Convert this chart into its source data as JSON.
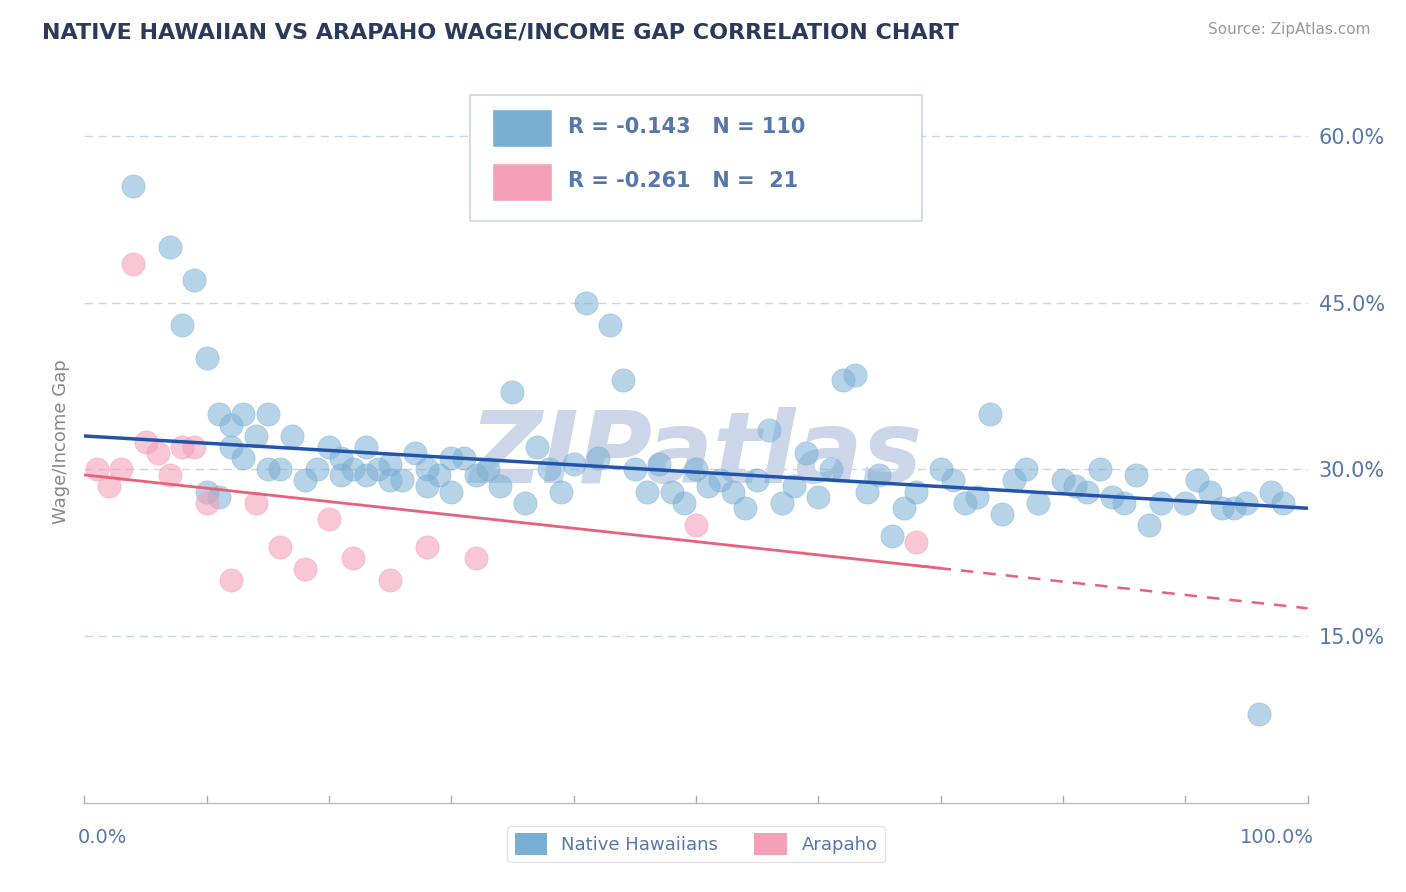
{
  "title": "NATIVE HAWAIIAN VS ARAPAHO WAGE/INCOME GAP CORRELATION CHART",
  "source_text": "Source: ZipAtlas.com",
  "ylabel": "Wage/Income Gap",
  "ytick_positions": [
    0.15,
    0.3,
    0.45,
    0.6
  ],
  "ytick_labels": [
    "15.0%",
    "30.0%",
    "45.0%",
    "60.0%"
  ],
  "xlim": [
    0.0,
    1.0
  ],
  "ylim": [
    0.0,
    0.65
  ],
  "watermark": "ZIPatlas",
  "watermark_color": "#ccd6e8",
  "blue_color": "#7aafd4",
  "pink_color": "#f4a0b8",
  "blue_line_color": "#2255aa",
  "pink_line_color": "#e8607a",
  "title_color": "#2a3a5a",
  "axis_label_color": "#5577aa",
  "grid_color": "#c8d4e8",
  "background_color": "#ffffff",
  "legend_box_color": "#e8eef8",
  "blue_scatter_x": [
    0.04,
    0.07,
    0.08,
    0.09,
    0.1,
    0.11,
    0.12,
    0.13,
    0.14,
    0.15,
    0.15,
    0.16,
    0.17,
    0.18,
    0.19,
    0.2,
    0.21,
    0.21,
    0.22,
    0.23,
    0.23,
    0.24,
    0.25,
    0.25,
    0.26,
    0.27,
    0.28,
    0.28,
    0.29,
    0.3,
    0.3,
    0.31,
    0.32,
    0.33,
    0.34,
    0.35,
    0.36,
    0.37,
    0.38,
    0.39,
    0.4,
    0.41,
    0.42,
    0.43,
    0.44,
    0.45,
    0.46,
    0.47,
    0.48,
    0.49,
    0.5,
    0.51,
    0.52,
    0.53,
    0.54,
    0.55,
    0.56,
    0.57,
    0.58,
    0.59,
    0.6,
    0.61,
    0.62,
    0.63,
    0.64,
    0.65,
    0.66,
    0.67,
    0.68,
    0.7,
    0.71,
    0.72,
    0.73,
    0.74,
    0.75,
    0.76,
    0.77,
    0.78,
    0.8,
    0.81,
    0.82,
    0.83,
    0.84,
    0.85,
    0.86,
    0.87,
    0.88,
    0.9,
    0.91,
    0.92,
    0.93,
    0.94,
    0.95,
    0.96,
    0.97,
    0.98,
    0.1,
    0.11,
    0.12,
    0.13
  ],
  "blue_scatter_y": [
    0.555,
    0.5,
    0.43,
    0.47,
    0.4,
    0.35,
    0.34,
    0.31,
    0.33,
    0.35,
    0.3,
    0.3,
    0.33,
    0.29,
    0.3,
    0.32,
    0.31,
    0.295,
    0.3,
    0.32,
    0.295,
    0.3,
    0.305,
    0.29,
    0.29,
    0.315,
    0.3,
    0.285,
    0.295,
    0.31,
    0.28,
    0.31,
    0.295,
    0.3,
    0.285,
    0.37,
    0.27,
    0.32,
    0.3,
    0.28,
    0.305,
    0.45,
    0.31,
    0.43,
    0.38,
    0.3,
    0.28,
    0.305,
    0.28,
    0.27,
    0.3,
    0.285,
    0.29,
    0.28,
    0.265,
    0.29,
    0.335,
    0.27,
    0.285,
    0.315,
    0.275,
    0.3,
    0.38,
    0.385,
    0.28,
    0.295,
    0.24,
    0.265,
    0.28,
    0.3,
    0.29,
    0.27,
    0.275,
    0.35,
    0.26,
    0.29,
    0.3,
    0.27,
    0.29,
    0.285,
    0.28,
    0.3,
    0.275,
    0.27,
    0.295,
    0.25,
    0.27,
    0.27,
    0.29,
    0.28,
    0.265,
    0.265,
    0.27,
    0.08,
    0.28,
    0.27,
    0.28,
    0.275,
    0.32,
    0.35
  ],
  "pink_scatter_x": [
    0.01,
    0.02,
    0.03,
    0.04,
    0.05,
    0.06,
    0.07,
    0.08,
    0.09,
    0.1,
    0.12,
    0.14,
    0.16,
    0.18,
    0.2,
    0.22,
    0.25,
    0.28,
    0.32,
    0.5,
    0.68
  ],
  "pink_scatter_y": [
    0.3,
    0.285,
    0.3,
    0.485,
    0.325,
    0.315,
    0.295,
    0.32,
    0.32,
    0.27,
    0.2,
    0.27,
    0.23,
    0.21,
    0.255,
    0.22,
    0.2,
    0.23,
    0.22,
    0.25,
    0.235
  ],
  "blue_line_x": [
    0.0,
    1.0
  ],
  "blue_line_y_start": 0.33,
  "blue_line_y_end": 0.265,
  "pink_line_x": [
    0.0,
    1.0
  ],
  "pink_line_y_start": 0.295,
  "pink_line_y_end": 0.175
}
